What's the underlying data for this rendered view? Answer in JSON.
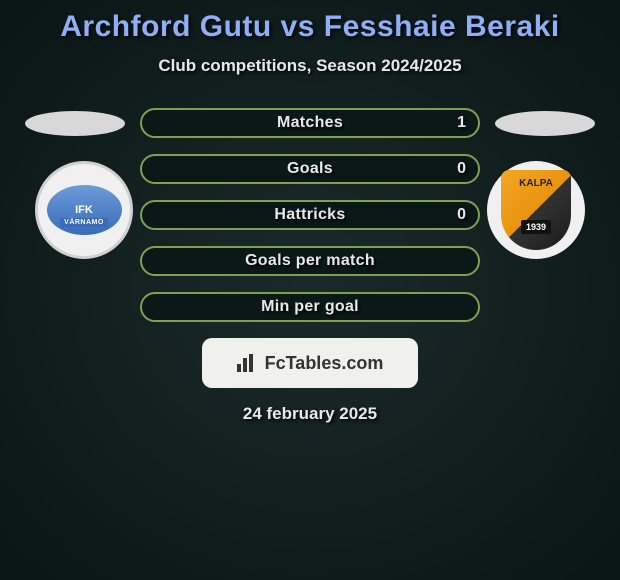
{
  "title": "Archford Gutu vs Fesshaie Beraki",
  "subtitle": "Club competitions, Season 2024/2025",
  "player_left": {
    "badge_text": "IFK",
    "badge_subtext": "VÄRNAMO",
    "badge_bg": "#f0f0f0",
    "badge_inner_gradient_top": "#6b9bd8",
    "badge_inner_gradient_bottom": "#3a6bb8"
  },
  "player_right": {
    "badge_text": "KALPA",
    "badge_year": "1939",
    "badge_bg": "#f0f0f0"
  },
  "stats": [
    {
      "label": "Matches",
      "right_value": "1"
    },
    {
      "label": "Goals",
      "right_value": "0"
    },
    {
      "label": "Hattricks",
      "right_value": "0"
    },
    {
      "label": "Goals per match",
      "right_value": ""
    },
    {
      "label": "Min per goal",
      "right_value": ""
    }
  ],
  "brand": {
    "text": "FcTables.com",
    "bg_color": "#f0f0ec",
    "text_color": "#333333"
  },
  "date": "24 february 2025",
  "style": {
    "row_border_color": "#7fa050",
    "row_bg_color": "#0a1818",
    "title_color": "#8faef5",
    "text_color": "#e8e8e8",
    "body_gradient_inner": "#1a2a2a",
    "body_gradient_outer": "#0a1515"
  }
}
